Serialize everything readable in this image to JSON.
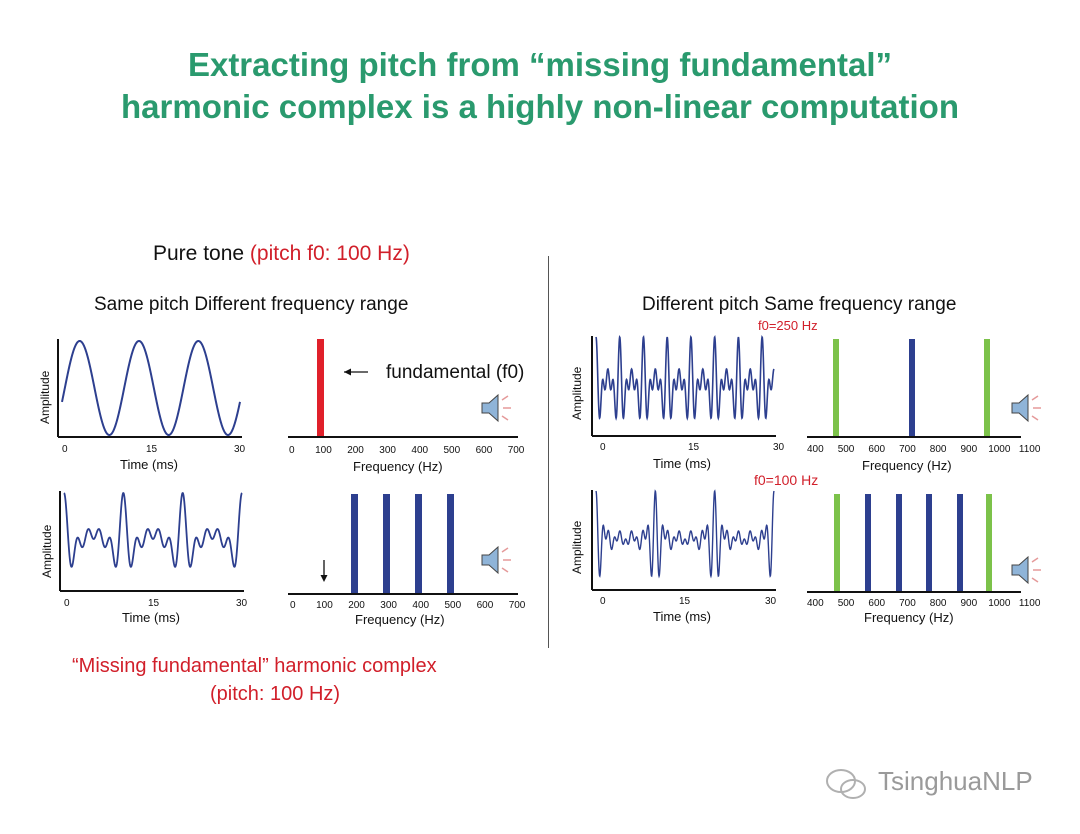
{
  "title": {
    "line1": "Extracting pitch from “missing fundamental”",
    "line2": "harmonic complex is a highly non-linear computation"
  },
  "left_panel": {
    "heading": "Pure tone",
    "heading_note": "(pitch f0: 100 Hz)",
    "subheading": "Same pitch  Different frequency range",
    "fundamental_label": "fundamental (f0)",
    "caption_line1": "“Missing fundamental” harmonic complex",
    "caption_line2": "(pitch: 100 Hz)"
  },
  "right_panel": {
    "subheading": "Different pitch  Same frequency range",
    "f0_top": "f0=250 Hz",
    "f0_bottom": "f0=100 Hz"
  },
  "axes": {
    "amplitude": "Amplitude",
    "time": "Time (ms)",
    "frequency": "Frequency (Hz)",
    "time_ticks": [
      "0",
      "15",
      "30"
    ],
    "freq_ticks_left": [
      "0",
      "100",
      "200",
      "300",
      "400",
      "500",
      "600",
      "700"
    ],
    "freq_ticks_right": [
      "400",
      "500",
      "600",
      "700",
      "800",
      "900",
      "1000",
      "1100"
    ]
  },
  "chart_data": [
    {
      "type": "bar",
      "id": "left-top-spectrum",
      "x_unit": "Hz",
      "xlim": [
        0,
        700
      ],
      "bars": [
        {
          "x": 100,
          "color": "#e0202a"
        }
      ]
    },
    {
      "type": "bar",
      "id": "left-bottom-spectrum",
      "x_unit": "Hz",
      "xlim": [
        0,
        700
      ],
      "bars": [
        {
          "x": 200,
          "color": "#2d3f8f"
        },
        {
          "x": 300,
          "color": "#2d3f8f"
        },
        {
          "x": 400,
          "color": "#2d3f8f"
        },
        {
          "x": 500,
          "color": "#2d3f8f"
        }
      ],
      "arrow_at": 100
    },
    {
      "type": "bar",
      "id": "right-top-spectrum",
      "x_unit": "Hz",
      "xlim": [
        400,
        1100
      ],
      "bars": [
        {
          "x": 500,
          "color": "#7cc24a"
        },
        {
          "x": 750,
          "color": "#2d3f8f"
        },
        {
          "x": 1000,
          "color": "#7cc24a"
        }
      ]
    },
    {
      "type": "bar",
      "id": "right-bottom-spectrum",
      "x_unit": "Hz",
      "xlim": [
        400,
        1100
      ],
      "bars": [
        {
          "x": 500,
          "color": "#7cc24a"
        },
        {
          "x": 600,
          "color": "#2d3f8f"
        },
        {
          "x": 700,
          "color": "#2d3f8f"
        },
        {
          "x": 800,
          "color": "#2d3f8f"
        },
        {
          "x": 900,
          "color": "#2d3f8f"
        },
        {
          "x": 1000,
          "color": "#7cc24a"
        }
      ]
    },
    {
      "type": "line",
      "id": "left-top-waveform",
      "x_unit": "ms",
      "xlim": [
        0,
        30
      ],
      "components_hz": [
        100
      ]
    },
    {
      "type": "line",
      "id": "left-bottom-waveform",
      "x_unit": "ms",
      "xlim": [
        0,
        30
      ],
      "components_hz": [
        200,
        300,
        400,
        500
      ]
    },
    {
      "type": "line",
      "id": "right-top-waveform",
      "x_unit": "ms",
      "xlim": [
        0,
        30
      ],
      "components_hz": [
        500,
        750,
        1000
      ]
    },
    {
      "type": "line",
      "id": "right-bottom-waveform",
      "x_unit": "ms",
      "xlim": [
        0,
        30
      ],
      "components_hz": [
        500,
        600,
        700,
        800,
        900,
        1000
      ]
    }
  ],
  "colors": {
    "title": "#2a9a6e",
    "accent_red": "#d11f2a",
    "wave": "#2d3f8f",
    "green_bar": "#7cc24a"
  },
  "watermark": "TsinghuaNLP"
}
